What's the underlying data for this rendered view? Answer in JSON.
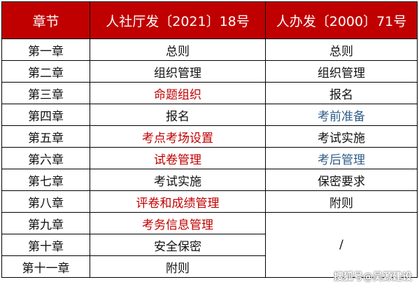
{
  "table": {
    "headers": [
      "章节",
      "人社厅发〔2021〕18号",
      "人办发〔2000〕71号"
    ],
    "rows": [
      {
        "chapter": "第一章",
        "doc2021": "总则",
        "doc2000": "总则"
      },
      {
        "chapter": "第二章",
        "doc2021": "组织管理",
        "doc2000": "组织管理"
      },
      {
        "chapter": "第三章",
        "doc2021": "命题组织",
        "doc2000": "报名"
      },
      {
        "chapter": "第四章",
        "doc2021": "报名",
        "doc2000": "考前准备"
      },
      {
        "chapter": "第五章",
        "doc2021": "考点考场设置",
        "doc2000": "考试实施"
      },
      {
        "chapter": "第六章",
        "doc2021": "试卷管理",
        "doc2000": "考后管理"
      },
      {
        "chapter": "第七章",
        "doc2021": "考试实施",
        "doc2000": "保密要求"
      },
      {
        "chapter": "第八章",
        "doc2021": "评卷和成绩管理",
        "doc2000": "附则"
      },
      {
        "chapter": "第九章",
        "doc2021": "考务信息管理"
      },
      {
        "chapter": "第十章",
        "doc2021": "安全保密"
      },
      {
        "chapter": "第十一章",
        "doc2021": "附则"
      }
    ],
    "merged_cell": "/"
  },
  "colors": {
    "header_bg": "#c00000",
    "header_text": "#ffffff",
    "highlight_red": "#c00000",
    "highlight_blue": "#2e5c8a",
    "border": "#000000"
  },
  "watermark": "搜狐号@吴源建设"
}
